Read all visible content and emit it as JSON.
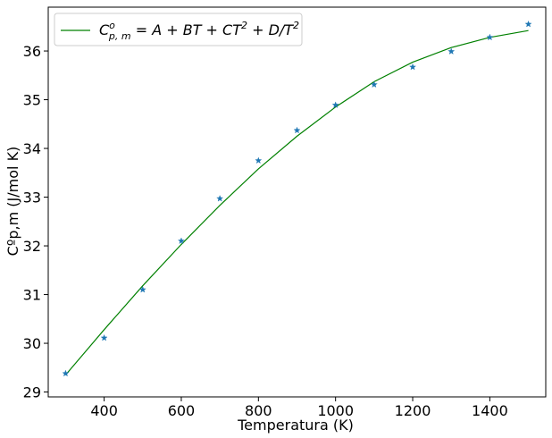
{
  "chart_data": {
    "type": "line",
    "xlabel": "Temperatura (K)",
    "ylabel": "Cºp,m (J/mol K)",
    "xlim": [
      255,
      1545
    ],
    "ylim": [
      28.9,
      36.9
    ],
    "xticks": [
      400,
      600,
      800,
      1000,
      1200,
      1400
    ],
    "yticks": [
      29,
      30,
      31,
      32,
      33,
      34,
      35,
      36
    ],
    "grid": false,
    "legend": "top-left",
    "series": [
      {
        "name": "C°p,m = A + BT + CT² + D/T²",
        "kind": "line",
        "color": "#008000",
        "x": [
          300,
          400,
          500,
          600,
          700,
          800,
          900,
          1000,
          1100,
          1200,
          1300,
          1400,
          1500
        ],
        "y": [
          29.35,
          30.28,
          31.18,
          32.03,
          32.83,
          33.58,
          34.25,
          34.85,
          35.37,
          35.77,
          36.07,
          36.28,
          36.42
        ]
      },
      {
        "kind": "scatter",
        "marker": "star",
        "color": "#1f77b4",
        "x": [
          300,
          400,
          500,
          600,
          700,
          800,
          900,
          1000,
          1100,
          1200,
          1300,
          1400,
          1500
        ],
        "y": [
          29.38,
          30.11,
          31.1,
          32.1,
          32.97,
          33.75,
          34.37,
          34.89,
          35.31,
          35.67,
          35.99,
          36.28,
          36.55
        ]
      }
    ],
    "legend_entries": [
      {
        "prefix": "C",
        "sup": "o",
        "sub": "p, m",
        "rest": " = A + BT + CT",
        "sq": "2",
        "rest2": " + D/T",
        "sq2": "2"
      }
    ]
  }
}
